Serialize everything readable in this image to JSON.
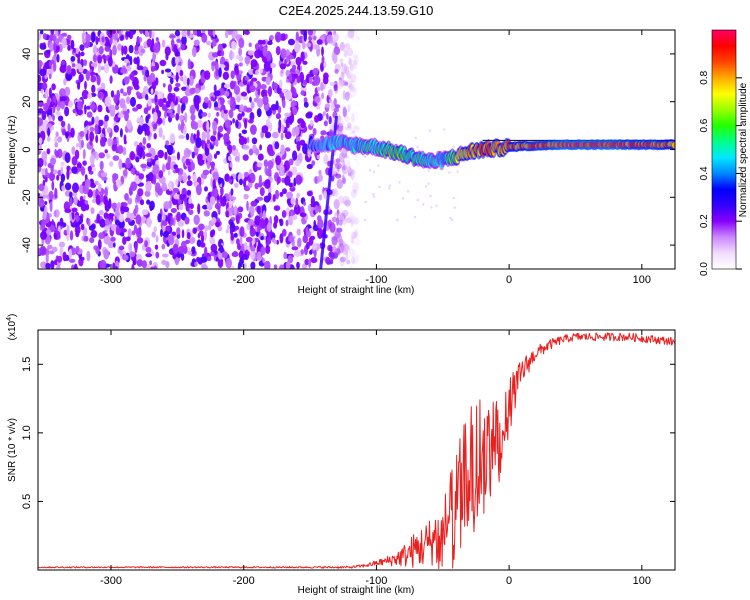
{
  "chart_data": [
    {
      "type": "heatmap",
      "title": "C2E4.2025.244.13.59.G10",
      "xlabel": "Height of straight line (km)",
      "ylabel": "Frequency (Hz)",
      "xlim": [
        -355,
        125
      ],
      "ylim": [
        -50,
        50
      ],
      "xticks": [
        -300,
        -200,
        -100,
        0,
        100
      ],
      "yticks": [
        -40,
        -20,
        0,
        20,
        40
      ],
      "colorbar": {
        "label": "Normalized spectral amplitude",
        "ticks": [
          0.0,
          0.2,
          0.4,
          0.6,
          0.8
        ],
        "range": [
          0,
          1
        ],
        "colors": [
          "#ffffff",
          "#f2dcff",
          "#cc88ff",
          "#8800ff",
          "#3300ff",
          "#0000ff",
          "#0088ff",
          "#00e8ff",
          "#00ff88",
          "#22ff00",
          "#99ff00",
          "#ffff00",
          "#ffaa00",
          "#ff4400",
          "#ff0000",
          "#ff0066"
        ]
      },
      "noise_region_end_km": -118,
      "signal_track": {
        "x": [
          -150,
          -140,
          -130,
          -120,
          -110,
          -100,
          -90,
          -80,
          -70,
          -60,
          -50,
          -40,
          -30,
          -20,
          -10,
          0,
          10,
          20,
          30,
          40,
          50,
          60,
          70,
          80,
          90,
          100,
          110,
          120,
          125
        ],
        "freq": [
          2.5,
          2.0,
          3.0,
          2.0,
          1.5,
          1.0,
          -0.5,
          -2.0,
          -3.5,
          -5.0,
          -4.5,
          -3.0,
          -1.0,
          0.0,
          0.5,
          1.0,
          1.5,
          1.5,
          2.0,
          2.0,
          2.0,
          2.0,
          2.0,
          2.0,
          2.0,
          2.0,
          2.0,
          2.0,
          2.0
        ],
        "amplitude": [
          0.35,
          0.4,
          0.45,
          0.45,
          0.5,
          0.5,
          0.6,
          0.6,
          0.55,
          0.5,
          0.45,
          0.65,
          0.8,
          0.85,
          0.8,
          0.85,
          0.85,
          0.9,
          0.9,
          0.95,
          0.95,
          0.95,
          0.95,
          0.95,
          0.9,
          0.9,
          0.9,
          0.85,
          0.85
        ]
      },
      "streak": {
        "x_top": -130,
        "x_bottom": -142,
        "freq_top": 14,
        "freq_bottom": -50
      }
    },
    {
      "type": "line",
      "xlabel": "Height of straight line (km)",
      "ylabel": "SNR (10 * v/v)",
      "scale_label": "(x10",
      "scale_exp": "4",
      "scale_close": ")",
      "xlim": [
        -355,
        125
      ],
      "ylim": [
        0,
        1.75
      ],
      "xticks": [
        -300,
        -200,
        -100,
        0,
        100
      ],
      "yticks": [
        0.5,
        1.0,
        1.5
      ],
      "ytick_labels": [
        "0.5",
        "1.0",
        "1.5"
      ],
      "color": "#e82020",
      "series": [
        {
          "name": "SNR",
          "x": [
            -355,
            -300,
            -250,
            -200,
            -150,
            -120,
            -110,
            -100,
            -90,
            -80,
            -70,
            -60,
            -50,
            -40,
            -30,
            -20,
            -10,
            0,
            10,
            20,
            30,
            40,
            50,
            60,
            70,
            80,
            90,
            100,
            110,
            120,
            125
          ],
          "y": [
            0.02,
            0.02,
            0.02,
            0.02,
            0.02,
            0.02,
            0.03,
            0.05,
            0.07,
            0.1,
            0.15,
            0.2,
            0.3,
            0.5,
            0.8,
            0.9,
            1.0,
            1.2,
            1.45,
            1.58,
            1.64,
            1.68,
            1.7,
            1.7,
            1.7,
            1.7,
            1.7,
            1.69,
            1.68,
            1.67,
            1.66
          ],
          "noise": [
            0.005,
            0.005,
            0.005,
            0.005,
            0.006,
            0.008,
            0.012,
            0.02,
            0.04,
            0.08,
            0.14,
            0.18,
            0.22,
            0.35,
            0.42,
            0.4,
            0.35,
            0.2,
            0.1,
            0.05,
            0.04,
            0.03,
            0.03,
            0.03,
            0.03,
            0.03,
            0.03,
            0.03,
            0.03,
            0.03,
            0.03
          ]
        }
      ]
    }
  ]
}
